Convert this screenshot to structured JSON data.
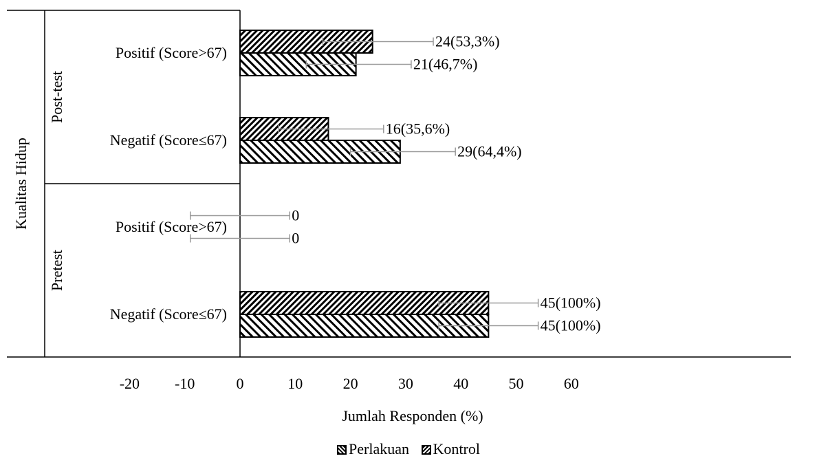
{
  "chart_data": {
    "type": "bar",
    "orientation": "horizontal",
    "axis_title_y": "Kualitas Hidup",
    "xlabel": "Jumlah Responden (%)",
    "xlim": [
      -20,
      60
    ],
    "x_ticks": [
      "-20",
      "-10",
      "0",
      "10",
      "20",
      "30",
      "40",
      "50",
      "60"
    ],
    "groups": [
      {
        "label": "Post-test",
        "categories": [
          "Positif (Score>67)",
          "Negatif (Score≤67)"
        ]
      },
      {
        "label": "Pretest",
        "categories": [
          "Positif (Score>67)",
          "Negatif (Score≤67)"
        ]
      }
    ],
    "series": [
      {
        "name": "Perlakuan",
        "pattern": "diagonal-up",
        "values": [
          24,
          16,
          0,
          45
        ],
        "data_labels": [
          "24(53,3%)",
          "16(35,6%)",
          "0",
          "45(100%)"
        ],
        "error_low": [
          15,
          7,
          -9,
          36
        ],
        "error_high": [
          35,
          26,
          9,
          54
        ]
      },
      {
        "name": "Kontrol",
        "pattern": "diagonal-down",
        "values": [
          21,
          29,
          0,
          45
        ],
        "data_labels": [
          "21(46,7%)",
          "29(64,4%)",
          "0",
          "45(100%)"
        ],
        "error_low": [
          12,
          20,
          -9,
          36
        ],
        "error_high": [
          31,
          39,
          9,
          54
        ]
      }
    ],
    "legend_position": "bottom",
    "grid": false
  },
  "colors": {
    "bar_stroke": "#000000",
    "error_bar": "#999999"
  }
}
